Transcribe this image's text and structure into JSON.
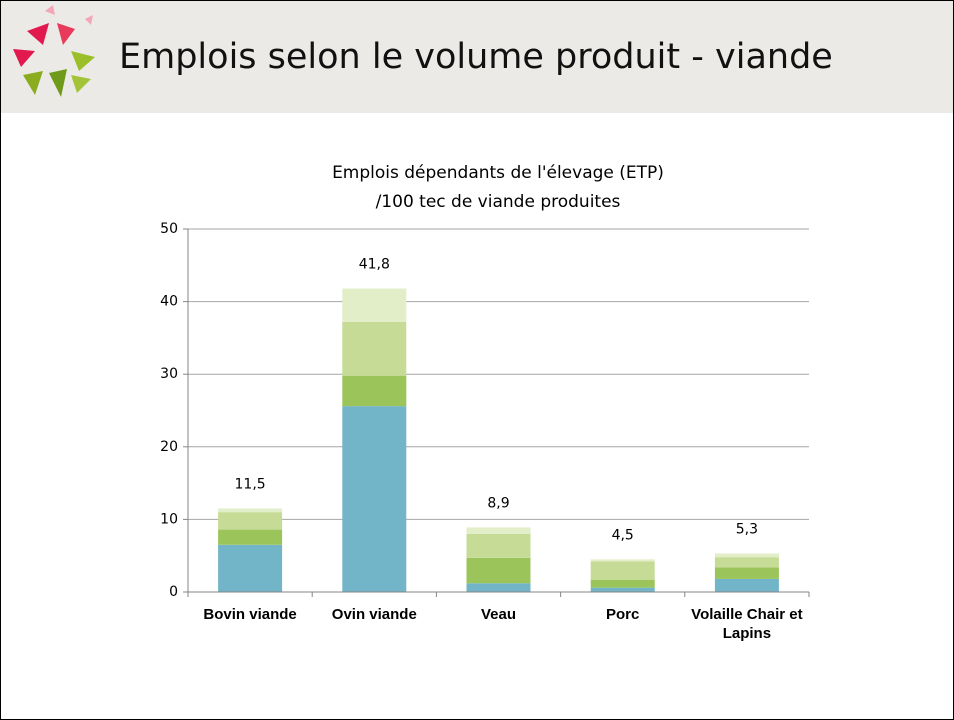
{
  "header": {
    "title": "Emplois selon le volume produit - viande"
  },
  "chart_data": {
    "type": "stacked-bar",
    "title_lines": [
      "Emplois dépendants de l'élevage (ETP)",
      "/100 tec de viande produites"
    ],
    "categories": [
      "Bovin viande",
      "Ovin viande",
      "Veau",
      "Porc",
      "Volaille Chair et Lapins"
    ],
    "series": [
      {
        "color": "#72b4c8",
        "values": [
          6.5,
          25.6,
          1.2,
          0.6,
          1.8
        ]
      },
      {
        "color": "#9bc45a",
        "values": [
          2.1,
          4.2,
          3.5,
          1.1,
          1.6
        ]
      },
      {
        "color": "#c6dc96",
        "values": [
          2.4,
          7.4,
          3.3,
          2.5,
          1.4
        ]
      },
      {
        "color": "#e2eec8",
        "values": [
          0.5,
          4.6,
          0.9,
          0.3,
          0.5
        ]
      }
    ],
    "totals": {
      "values": [
        11.5,
        41.8,
        8.9,
        4.5,
        5.3
      ],
      "value_labels": [
        "11,5",
        "41,8",
        "8,9",
        "4,5",
        "5,3"
      ]
    },
    "ylim": [
      0,
      50
    ],
    "yticks": [
      0,
      10,
      20,
      30,
      40,
      50
    ],
    "grid": true
  }
}
